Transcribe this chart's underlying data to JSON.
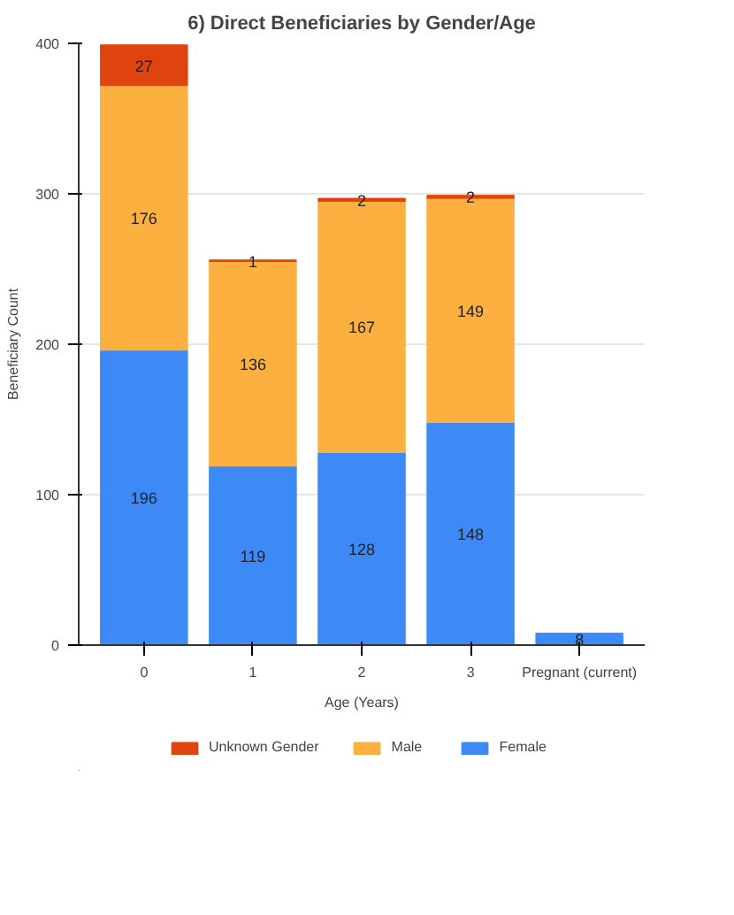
{
  "chart_data": {
    "type": "bar",
    "title": "6) Direct Beneficiaries by Gender/Age",
    "xlabel": "Age (Years)",
    "ylabel": "Beneficiary Count",
    "categories": [
      "0",
      "1",
      "2",
      "3",
      "Pregnant (current)"
    ],
    "stacked": true,
    "data_labels": true,
    "grid": "y",
    "legend": "bottom",
    "ylim": [
      0,
      400
    ],
    "yticks": [
      0,
      100,
      200,
      300,
      400
    ],
    "series": [
      {
        "name": "Female",
        "color": "#3d8af7",
        "values": [
          196,
          119,
          128,
          148,
          8
        ]
      },
      {
        "name": "Male",
        "color": "#fbb040",
        "values": [
          176,
          136,
          167,
          149,
          null
        ]
      },
      {
        "name": "Unknown Gender",
        "color": "#e0440e",
        "values": [
          27,
          1,
          2,
          2,
          null
        ]
      }
    ]
  }
}
